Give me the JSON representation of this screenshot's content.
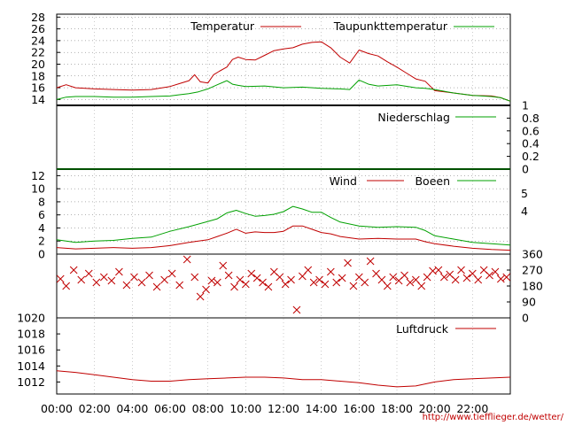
{
  "credit_url": "http://www.tiefflieger.de/wetter/",
  "x_axis": {
    "tick_labels": [
      "00:00",
      "02:00",
      "04:00",
      "06:00",
      "08:00",
      "10:00",
      "12:00",
      "14:00",
      "16:00",
      "18:00",
      "20:00",
      "22:00"
    ],
    "range_hours": [
      0,
      24
    ]
  },
  "colors": {
    "primary": "#c00000",
    "secondary": "#00a000",
    "grid": "#888888"
  },
  "chart_data": [
    {
      "type": "line",
      "panel": "temperature",
      "ylim": [
        13,
        28.5
      ],
      "y_ticks": [
        14,
        16,
        18,
        20,
        22,
        24,
        26,
        28
      ],
      "y_tick_labels": [
        "14",
        "16",
        "18",
        "20",
        "22",
        "24",
        "26",
        "28"
      ],
      "legend_position": "top-right",
      "grid": true,
      "series": [
        {
          "name": "Temperatur",
          "color": "#c00000",
          "x": [
            0,
            0.5,
            1,
            2,
            3,
            4,
            5,
            6,
            6.5,
            7,
            7.3,
            7.6,
            8,
            8.3,
            8.6,
            9,
            9.3,
            9.6,
            10,
            10.5,
            11,
            11.5,
            12,
            12.5,
            13,
            13.5,
            14,
            14.5,
            15,
            15.5,
            16,
            16.5,
            17,
            17.5,
            18,
            18.5,
            19,
            19.5,
            20,
            21,
            22,
            23,
            23.5,
            24
          ],
          "y": [
            16,
            16.5,
            16,
            15.8,
            15.7,
            15.6,
            15.7,
            16.2,
            16.7,
            17.2,
            18.2,
            17,
            16.8,
            18.2,
            18.8,
            19.5,
            20.8,
            21.2,
            20.8,
            20.7,
            21.5,
            22.3,
            22.6,
            22.8,
            23.4,
            23.7,
            23.8,
            22.8,
            21.2,
            20.2,
            22.4,
            21.8,
            21.4,
            20.4,
            19.5,
            18.5,
            17.5,
            17.1,
            15.5,
            15.1,
            14.7,
            14.6,
            14.3,
            13.7
          ]
        },
        {
          "name": "Taupunkttemperatur",
          "color": "#00a000",
          "x": [
            0,
            0.5,
            1,
            2,
            3,
            4,
            5,
            6,
            6.5,
            7,
            7.5,
            8,
            8.5,
            9,
            9.3,
            9.6,
            10,
            11,
            12,
            13,
            14,
            15,
            15.5,
            16,
            16.5,
            17,
            18,
            19,
            19.5,
            20,
            21,
            22,
            23,
            23.5,
            24
          ],
          "y": [
            14,
            14.4,
            14.5,
            14.5,
            14.4,
            14.4,
            14.5,
            14.6,
            14.8,
            15,
            15.3,
            15.8,
            16.5,
            17.2,
            16.6,
            16.4,
            16.2,
            16.3,
            16,
            16.1,
            15.9,
            15.8,
            15.7,
            17.3,
            16.6,
            16.3,
            16.5,
            16,
            15.9,
            15.7,
            15.1,
            14.7,
            14.5,
            14.3,
            13.7
          ]
        }
      ]
    },
    {
      "type": "line",
      "panel": "precipitation",
      "ylim": [
        0,
        1
      ],
      "y_ticks": [
        0,
        0.2,
        0.4,
        0.6,
        0.8,
        1
      ],
      "y_tick_labels": [
        "0",
        "0.2",
        "0.4",
        "0.6",
        "0.8",
        "1"
      ],
      "legend_position": "top-right",
      "series": [
        {
          "name": "Niederschlag",
          "color": "#00a000",
          "x": [
            0,
            24
          ],
          "y": [
            0,
            0
          ]
        }
      ]
    },
    {
      "type": "line",
      "panel": "wind",
      "ylim": [
        0,
        13
      ],
      "y_ticks": [
        0,
        2,
        4,
        6,
        8,
        10,
        12
      ],
      "y_tick_labels": [
        "0",
        "2",
        "4",
        "6",
        "8",
        "10",
        "12"
      ],
      "right_labels": [
        "4",
        "5"
      ],
      "legend_position": "top-right",
      "grid": true,
      "series": [
        {
          "name": "Wind",
          "color": "#c00000",
          "x": [
            0,
            1,
            2,
            3,
            4,
            5,
            6,
            7,
            8,
            8.5,
            9,
            9.5,
            10,
            10.5,
            11,
            11.5,
            12,
            12.5,
            13,
            13.5,
            14,
            14.5,
            15,
            16,
            17,
            18,
            19,
            19.5,
            20,
            21,
            22,
            23,
            24
          ],
          "y": [
            1,
            0.8,
            0.9,
            1,
            0.9,
            1,
            1.3,
            1.8,
            2.2,
            2.7,
            3.2,
            3.8,
            3.2,
            3.4,
            3.3,
            3.3,
            3.5,
            4.3,
            4.3,
            3.8,
            3.3,
            3.1,
            2.7,
            2.3,
            2.4,
            2.3,
            2.3,
            1.9,
            1.6,
            1.2,
            0.9,
            0.7,
            0.6
          ]
        },
        {
          "name": "Boeen",
          "color": "#00a000",
          "x": [
            0,
            1,
            2,
            3,
            4,
            5,
            6,
            7,
            8,
            8.5,
            9,
            9.5,
            10,
            10.5,
            11,
            11.5,
            12,
            12.5,
            13,
            13.5,
            14,
            14.5,
            15,
            16,
            17,
            18,
            19,
            19.5,
            20,
            21,
            22,
            23,
            24
          ],
          "y": [
            2.2,
            1.8,
            2,
            2.1,
            2.4,
            2.6,
            3.5,
            4.2,
            5,
            5.4,
            6.3,
            6.7,
            6.2,
            5.8,
            5.9,
            6.1,
            6.5,
            7.3,
            6.9,
            6.4,
            6.4,
            5.6,
            4.9,
            4.3,
            4.1,
            4.2,
            4.1,
            3.6,
            2.8,
            2.3,
            1.8,
            1.6,
            1.4
          ]
        }
      ]
    },
    {
      "type": "scatter",
      "panel": "wind-direction",
      "ylim": [
        0,
        360
      ],
      "y_ticks": [
        0,
        90,
        180,
        270,
        360
      ],
      "y_tick_labels": [
        "0",
        "90",
        "180",
        "270",
        "360"
      ],
      "marker": "x",
      "series": [
        {
          "color": "#c00000",
          "x": [
            0.2,
            0.5,
            0.9,
            1.3,
            1.7,
            2.1,
            2.5,
            2.9,
            3.3,
            3.7,
            4.1,
            4.5,
            4.9,
            5.3,
            5.7,
            6.1,
            6.5,
            6.9,
            7.3,
            7.6,
            7.9,
            8.2,
            8.5,
            8.8,
            9.1,
            9.4,
            9.7,
            10,
            10.3,
            10.6,
            10.9,
            11.2,
            11.5,
            11.8,
            12.1,
            12.4,
            12.7,
            13,
            13.3,
            13.6,
            13.9,
            14.2,
            14.5,
            14.8,
            15.1,
            15.4,
            15.7,
            16,
            16.3,
            16.6,
            16.9,
            17.2,
            17.5,
            17.8,
            18.1,
            18.4,
            18.7,
            19,
            19.3,
            19.6,
            19.9,
            20.2,
            20.5,
            20.8,
            21.1,
            21.4,
            21.7,
            22,
            22.3,
            22.6,
            22.9,
            23.2,
            23.5,
            23.8
          ],
          "y": [
            220,
            180,
            270,
            215,
            250,
            200,
            230,
            210,
            260,
            185,
            230,
            200,
            240,
            175,
            215,
            250,
            185,
            330,
            230,
            120,
            160,
            210,
            200,
            295,
            240,
            175,
            215,
            190,
            250,
            225,
            200,
            175,
            260,
            230,
            190,
            215,
            45,
            235,
            270,
            200,
            215,
            190,
            260,
            200,
            225,
            310,
            180,
            230,
            200,
            320,
            250,
            215,
            180,
            230,
            210,
            240,
            200,
            215,
            180,
            230,
            265,
            270,
            230,
            245,
            215,
            270,
            225,
            250,
            215,
            270,
            240,
            260,
            220,
            230
          ]
        }
      ]
    },
    {
      "type": "line",
      "panel": "pressure",
      "ylim": [
        1010.5,
        1020
      ],
      "y_ticks": [
        1012,
        1014,
        1016,
        1018,
        1020
      ],
      "y_tick_labels": [
        "1012",
        "1014",
        "1016",
        "1018",
        "1020"
      ],
      "legend_position": "top-right",
      "series": [
        {
          "name": "Luftdruck",
          "color": "#c00000",
          "x": [
            0,
            1,
            2,
            3,
            4,
            5,
            6,
            7,
            8,
            9,
            10,
            11,
            12,
            13,
            14,
            15,
            16,
            17,
            18,
            19,
            20,
            21,
            22,
            23,
            24
          ],
          "y": [
            1013.4,
            1013.2,
            1012.9,
            1012.6,
            1012.3,
            1012.1,
            1012.1,
            1012.3,
            1012.4,
            1012.5,
            1012.6,
            1012.6,
            1012.5,
            1012.3,
            1012.3,
            1012.1,
            1011.9,
            1011.6,
            1011.4,
            1011.5,
            1012,
            1012.3,
            1012.4,
            1012.5,
            1012.6
          ]
        }
      ]
    }
  ]
}
